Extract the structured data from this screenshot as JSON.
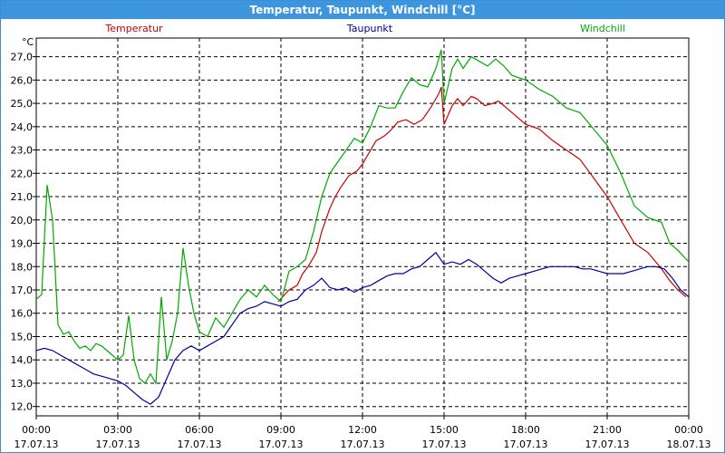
{
  "window": {
    "title": "Temperatur, Taupunkt, Windchill [°C]"
  },
  "chart_data": {
    "type": "line",
    "ylabel": "°C",
    "ylim": [
      11.6,
      27.8
    ],
    "yticks": [
      12.0,
      13.0,
      14.0,
      15.0,
      16.0,
      17.0,
      18.0,
      19.0,
      20.0,
      21.0,
      22.0,
      23.0,
      24.0,
      25.0,
      26.0,
      27.0
    ],
    "ytick_labels": [
      "12,0",
      "13,0",
      "14,0",
      "15,0",
      "16,0",
      "17,0",
      "18,0",
      "19,0",
      "20,0",
      "21,0",
      "22,0",
      "23,0",
      "24,0",
      "25,0",
      "26,0",
      "27,0"
    ],
    "xlim": [
      0,
      24
    ],
    "xticks": [
      {
        "x": 0,
        "time": "00:00",
        "date": "17.07.13"
      },
      {
        "x": 3,
        "time": "03:00",
        "date": "17.07.13"
      },
      {
        "x": 6,
        "time": "06:00",
        "date": "17.07.13"
      },
      {
        "x": 9,
        "time": "09:00",
        "date": "17.07.13"
      },
      {
        "x": 12,
        "time": "12:00",
        "date": "17.07.13"
      },
      {
        "x": 15,
        "time": "15:00",
        "date": "17.07.13"
      },
      {
        "x": 18,
        "time": "18:00",
        "date": "17.07.13"
      },
      {
        "x": 21,
        "time": "21:00",
        "date": "17.07.13"
      },
      {
        "x": 24,
        "time": "00:00",
        "date": "18.07.13"
      }
    ],
    "grid": true,
    "series": [
      {
        "name": "Temperatur",
        "color": "#cc0000",
        "points": [
          [
            8.9,
            16.5
          ],
          [
            9.3,
            17.0
          ],
          [
            9.6,
            17.2
          ],
          [
            9.8,
            17.7
          ],
          [
            10.0,
            18.0
          ],
          [
            10.3,
            18.6
          ],
          [
            10.5,
            19.5
          ],
          [
            10.8,
            20.5
          ],
          [
            11.0,
            21.0
          ],
          [
            11.2,
            21.4
          ],
          [
            11.5,
            21.9
          ],
          [
            11.8,
            22.1
          ],
          [
            12.0,
            22.4
          ],
          [
            12.2,
            22.8
          ],
          [
            12.5,
            23.4
          ],
          [
            12.8,
            23.6
          ],
          [
            13.0,
            23.8
          ],
          [
            13.3,
            24.2
          ],
          [
            13.6,
            24.3
          ],
          [
            13.9,
            24.1
          ],
          [
            14.2,
            24.3
          ],
          [
            14.5,
            24.8
          ],
          [
            14.8,
            25.4
          ],
          [
            14.9,
            25.7
          ],
          [
            15.0,
            24.1
          ],
          [
            15.3,
            24.9
          ],
          [
            15.5,
            25.2
          ],
          [
            15.7,
            24.9
          ],
          [
            16.0,
            25.3
          ],
          [
            16.2,
            25.2
          ],
          [
            16.5,
            24.9
          ],
          [
            16.8,
            25.0
          ],
          [
            17.0,
            25.1
          ],
          [
            17.3,
            24.8
          ],
          [
            17.6,
            24.5
          ],
          [
            18.0,
            24.1
          ],
          [
            18.5,
            23.9
          ],
          [
            19.0,
            23.4
          ],
          [
            19.5,
            23.0
          ],
          [
            20.0,
            22.6
          ],
          [
            20.5,
            21.8
          ],
          [
            21.0,
            21.0
          ],
          [
            21.5,
            20.0
          ],
          [
            22.0,
            19.0
          ],
          [
            22.5,
            18.6
          ],
          [
            23.0,
            17.9
          ],
          [
            23.3,
            17.4
          ],
          [
            23.6,
            17.0
          ],
          [
            23.9,
            16.7
          ]
        ]
      },
      {
        "name": "Taupunkt",
        "color": "#0000a0",
        "points": [
          [
            0.0,
            14.4
          ],
          [
            0.3,
            14.5
          ],
          [
            0.6,
            14.4
          ],
          [
            0.9,
            14.2
          ],
          [
            1.2,
            14.0
          ],
          [
            1.5,
            13.8
          ],
          [
            1.8,
            13.6
          ],
          [
            2.1,
            13.4
          ],
          [
            2.4,
            13.3
          ],
          [
            2.7,
            13.2
          ],
          [
            3.0,
            13.1
          ],
          [
            3.3,
            12.9
          ],
          [
            3.6,
            12.6
          ],
          [
            3.9,
            12.3
          ],
          [
            4.2,
            12.1
          ],
          [
            4.5,
            12.4
          ],
          [
            4.8,
            13.2
          ],
          [
            5.1,
            14.0
          ],
          [
            5.4,
            14.4
          ],
          [
            5.7,
            14.6
          ],
          [
            6.0,
            14.4
          ],
          [
            6.3,
            14.6
          ],
          [
            6.6,
            14.8
          ],
          [
            6.9,
            15.0
          ],
          [
            7.2,
            15.5
          ],
          [
            7.5,
            16.0
          ],
          [
            7.8,
            16.2
          ],
          [
            8.1,
            16.3
          ],
          [
            8.4,
            16.5
          ],
          [
            8.7,
            16.4
          ],
          [
            9.0,
            16.3
          ],
          [
            9.3,
            16.5
          ],
          [
            9.6,
            16.6
          ],
          [
            9.9,
            17.0
          ],
          [
            10.2,
            17.2
          ],
          [
            10.5,
            17.5
          ],
          [
            10.8,
            17.1
          ],
          [
            11.1,
            17.0
          ],
          [
            11.4,
            17.1
          ],
          [
            11.7,
            16.9
          ],
          [
            12.0,
            17.1
          ],
          [
            12.3,
            17.2
          ],
          [
            12.6,
            17.4
          ],
          [
            12.9,
            17.6
          ],
          [
            13.2,
            17.7
          ],
          [
            13.5,
            17.7
          ],
          [
            13.8,
            17.9
          ],
          [
            14.1,
            18.0
          ],
          [
            14.4,
            18.3
          ],
          [
            14.7,
            18.6
          ],
          [
            15.0,
            18.1
          ],
          [
            15.3,
            18.2
          ],
          [
            15.6,
            18.1
          ],
          [
            15.9,
            18.3
          ],
          [
            16.2,
            18.1
          ],
          [
            16.5,
            17.8
          ],
          [
            16.8,
            17.5
          ],
          [
            17.1,
            17.3
          ],
          [
            17.4,
            17.5
          ],
          [
            17.7,
            17.6
          ],
          [
            18.0,
            17.7
          ],
          [
            18.3,
            17.8
          ],
          [
            18.6,
            17.9
          ],
          [
            18.9,
            18.0
          ],
          [
            19.2,
            18.0
          ],
          [
            19.5,
            18.0
          ],
          [
            19.8,
            18.0
          ],
          [
            20.1,
            17.9
          ],
          [
            20.4,
            17.9
          ],
          [
            20.7,
            17.8
          ],
          [
            21.0,
            17.7
          ],
          [
            21.3,
            17.7
          ],
          [
            21.6,
            17.7
          ],
          [
            21.9,
            17.8
          ],
          [
            22.2,
            17.9
          ],
          [
            22.5,
            18.0
          ],
          [
            22.8,
            18.0
          ],
          [
            23.1,
            17.9
          ],
          [
            23.4,
            17.5
          ],
          [
            23.7,
            17.0
          ],
          [
            24.0,
            16.7
          ]
        ]
      },
      {
        "name": "Windchill",
        "color": "#00aa00",
        "points": [
          [
            0.0,
            16.6
          ],
          [
            0.2,
            16.8
          ],
          [
            0.4,
            21.5
          ],
          [
            0.6,
            20.0
          ],
          [
            0.8,
            15.5
          ],
          [
            1.0,
            15.1
          ],
          [
            1.2,
            15.2
          ],
          [
            1.4,
            14.8
          ],
          [
            1.6,
            14.5
          ],
          [
            1.8,
            14.6
          ],
          [
            2.0,
            14.4
          ],
          [
            2.2,
            14.7
          ],
          [
            2.4,
            14.6
          ],
          [
            2.7,
            14.3
          ],
          [
            3.0,
            14.0
          ],
          [
            3.2,
            14.2
          ],
          [
            3.4,
            15.9
          ],
          [
            3.6,
            14.0
          ],
          [
            3.8,
            13.2
          ],
          [
            4.0,
            13.0
          ],
          [
            4.2,
            13.4
          ],
          [
            4.4,
            13.0
          ],
          [
            4.6,
            16.7
          ],
          [
            4.8,
            14.0
          ],
          [
            5.0,
            14.8
          ],
          [
            5.2,
            16.0
          ],
          [
            5.4,
            18.8
          ],
          [
            5.6,
            17.2
          ],
          [
            5.8,
            16.0
          ],
          [
            6.0,
            15.2
          ],
          [
            6.3,
            15.0
          ],
          [
            6.6,
            15.8
          ],
          [
            6.9,
            15.4
          ],
          [
            7.2,
            16.0
          ],
          [
            7.5,
            16.6
          ],
          [
            7.8,
            17.0
          ],
          [
            8.1,
            16.7
          ],
          [
            8.4,
            17.2
          ],
          [
            8.7,
            16.8
          ],
          [
            9.0,
            16.5
          ],
          [
            9.3,
            17.8
          ],
          [
            9.6,
            18.0
          ],
          [
            9.9,
            18.3
          ],
          [
            10.2,
            19.5
          ],
          [
            10.5,
            21.0
          ],
          [
            10.8,
            22.0
          ],
          [
            11.1,
            22.5
          ],
          [
            11.4,
            23.0
          ],
          [
            11.7,
            23.5
          ],
          [
            12.0,
            23.3
          ],
          [
            12.3,
            24.0
          ],
          [
            12.6,
            24.9
          ],
          [
            12.9,
            24.8
          ],
          [
            13.2,
            24.8
          ],
          [
            13.5,
            25.5
          ],
          [
            13.8,
            26.1
          ],
          [
            14.1,
            25.8
          ],
          [
            14.4,
            25.7
          ],
          [
            14.7,
            26.5
          ],
          [
            14.9,
            27.3
          ],
          [
            15.0,
            25.0
          ],
          [
            15.3,
            26.5
          ],
          [
            15.5,
            26.9
          ],
          [
            15.7,
            26.5
          ],
          [
            16.0,
            27.0
          ],
          [
            16.3,
            26.8
          ],
          [
            16.6,
            26.6
          ],
          [
            16.9,
            26.9
          ],
          [
            17.2,
            26.6
          ],
          [
            17.5,
            26.2
          ],
          [
            18.0,
            26.0
          ],
          [
            18.5,
            25.6
          ],
          [
            19.0,
            25.3
          ],
          [
            19.5,
            24.8
          ],
          [
            20.0,
            24.6
          ],
          [
            20.5,
            23.9
          ],
          [
            21.0,
            23.2
          ],
          [
            21.5,
            22.0
          ],
          [
            22.0,
            20.6
          ],
          [
            22.5,
            20.1
          ],
          [
            23.0,
            19.9
          ],
          [
            23.3,
            19.0
          ],
          [
            23.6,
            18.7
          ],
          [
            24.0,
            18.2
          ]
        ]
      }
    ]
  }
}
